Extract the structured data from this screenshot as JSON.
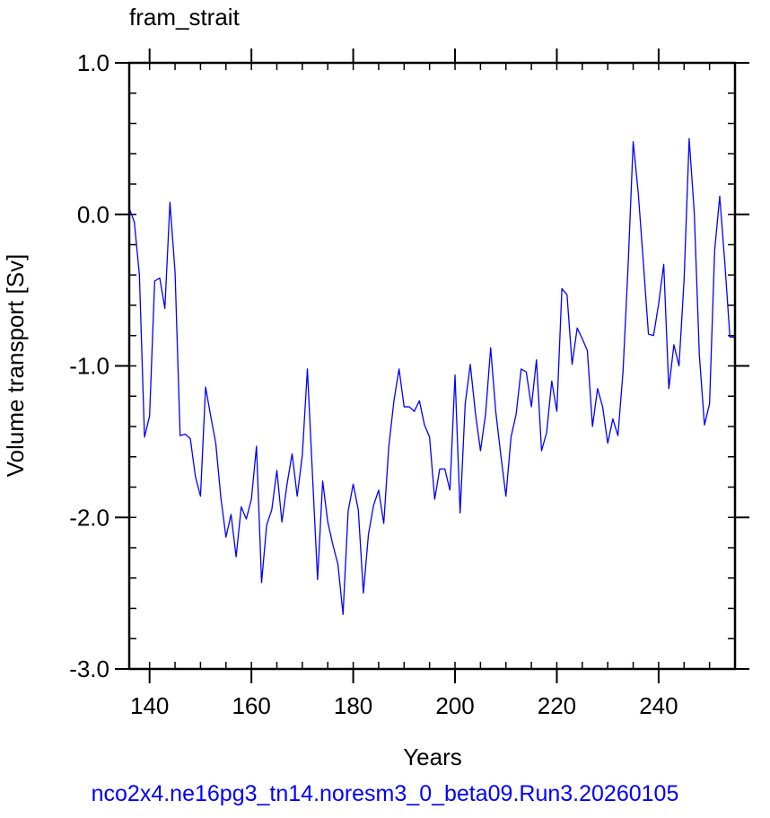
{
  "chart_data": {
    "type": "line",
    "title": "fram_strait",
    "xlabel": "Years",
    "ylabel": "Volume transport [Sv]",
    "xlim": [
      136,
      255
    ],
    "ylim": [
      -3.0,
      1.0
    ],
    "x_ticks": [
      140,
      160,
      180,
      200,
      220,
      240
    ],
    "x_tick_labels": [
      "140",
      "160",
      "180",
      "200",
      "220",
      "240"
    ],
    "y_ticks": [
      1.0,
      0.0,
      -1.0,
      -2.0,
      -3.0
    ],
    "y_tick_labels": [
      "1.0",
      "0.0",
      "-1.0",
      "-2.0",
      "-3.0"
    ],
    "grid": false,
    "line_color": "#0000ff",
    "series": [
      {
        "x": [
          136,
          137,
          138,
          139,
          140,
          141,
          142,
          143,
          144,
          145,
          146,
          147,
          148,
          149,
          150,
          151,
          152,
          153,
          154,
          155,
          156,
          157,
          158,
          159,
          160,
          161,
          162,
          163,
          164,
          165,
          166,
          167,
          168,
          169,
          170,
          171,
          172,
          173,
          174,
          175,
          176,
          177,
          178,
          179,
          180,
          181,
          182,
          183,
          184,
          185,
          186,
          187,
          188,
          189,
          190,
          191,
          192,
          193,
          194,
          195,
          196,
          197,
          198,
          199,
          200,
          201,
          202,
          203,
          204,
          205,
          206,
          207,
          208,
          209,
          210,
          211,
          212,
          213,
          214,
          215,
          216,
          217,
          218,
          219,
          220,
          221,
          222,
          223,
          224,
          225,
          226,
          227,
          228,
          229,
          230,
          231,
          232,
          233,
          234,
          235,
          236,
          237,
          238,
          239,
          240,
          241,
          242,
          243,
          244,
          245,
          246,
          247,
          248,
          249,
          250,
          251,
          252,
          253,
          254,
          255
        ],
        "y": [
          0.04,
          -0.05,
          -0.4,
          -1.47,
          -1.33,
          -0.44,
          -0.42,
          -0.62,
          0.08,
          -0.38,
          -1.46,
          -1.45,
          -1.48,
          -1.73,
          -1.86,
          -1.14,
          -1.33,
          -1.51,
          -1.87,
          -2.13,
          -1.98,
          -2.26,
          -1.93,
          -2.01,
          -1.88,
          -1.53,
          -2.43,
          -2.05,
          -1.95,
          -1.69,
          -2.03,
          -1.78,
          -1.58,
          -1.86,
          -1.59,
          -1.02,
          -1.72,
          -2.41,
          -1.76,
          -2.03,
          -2.18,
          -2.31,
          -2.64,
          -1.96,
          -1.78,
          -1.95,
          -2.5,
          -2.11,
          -1.92,
          -1.82,
          -2.04,
          -1.53,
          -1.23,
          -1.02,
          -1.27,
          -1.27,
          -1.3,
          -1.23,
          -1.39,
          -1.47,
          -1.88,
          -1.68,
          -1.68,
          -1.82,
          -1.06,
          -1.97,
          -1.25,
          -0.99,
          -1.31,
          -1.56,
          -1.32,
          -0.88,
          -1.3,
          -1.59,
          -1.86,
          -1.47,
          -1.32,
          -1.02,
          -1.04,
          -1.27,
          -0.96,
          -1.56,
          -1.44,
          -1.1,
          -1.3,
          -0.49,
          -0.53,
          -0.99,
          -0.75,
          -0.82,
          -0.9,
          -1.4,
          -1.15,
          -1.27,
          -1.51,
          -1.35,
          -1.46,
          -1.04,
          -0.34,
          0.48,
          0.14,
          -0.32,
          -0.79,
          -0.8,
          -0.59,
          -0.33,
          -1.15,
          -0.86,
          -1.0,
          -0.43,
          0.5,
          0.01,
          -0.93,
          -1.39,
          -1.25,
          -0.24,
          0.12,
          -0.32,
          -0.81,
          -0.81
        ]
      }
    ]
  },
  "footer": {
    "caption": "nco2x4.ne16pg3_tn14.noresm3_0_beta09.Run3.20260105"
  }
}
